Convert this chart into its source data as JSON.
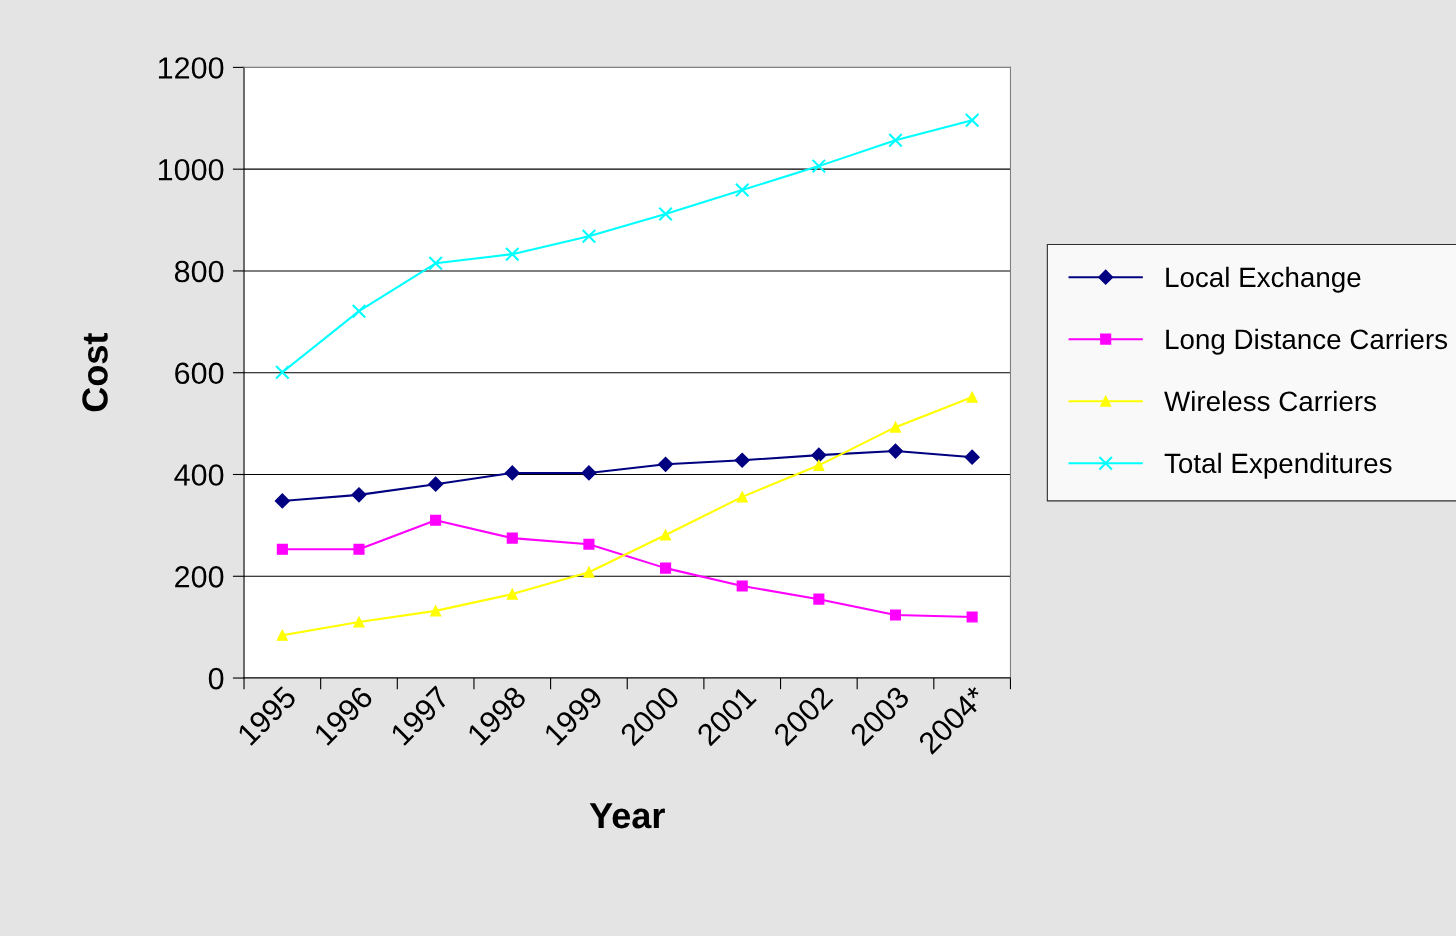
{
  "chart_data": {
    "type": "line",
    "xlabel": "Year",
    "ylabel": "Cost",
    "categories": [
      "1995",
      "1996",
      "1997",
      "1998",
      "1999",
      "2000",
      "2001",
      "2002",
      "2003",
      "2004*"
    ],
    "series": [
      {
        "name": "Local Exchange",
        "color": "#000080",
        "marker": "diamond",
        "values": [
          348,
          360,
          381,
          403,
          403,
          420,
          428,
          438,
          446,
          434
        ]
      },
      {
        "name": "Long Distance Carriers",
        "color": "#ff00ff",
        "marker": "square",
        "values": [
          253,
          253,
          310,
          275,
          263,
          216,
          181,
          155,
          124,
          120
        ]
      },
      {
        "name": "Wireless Carriers",
        "color": "#ffff00",
        "marker": "triangle",
        "values": [
          84,
          110,
          132,
          165,
          208,
          281,
          356,
          418,
          493,
          552
        ]
      },
      {
        "name": "Total Expenditures",
        "color": "#00ffff",
        "marker": "cross",
        "values": [
          601,
          721,
          815,
          833,
          868,
          912,
          959,
          1006,
          1057,
          1096
        ]
      }
    ],
    "ylim": [
      0,
      1200
    ],
    "yticks": [
      0,
      200,
      400,
      600,
      800,
      1000,
      1200
    ],
    "grid": "y",
    "legend": "right",
    "line_style": "solid"
  }
}
